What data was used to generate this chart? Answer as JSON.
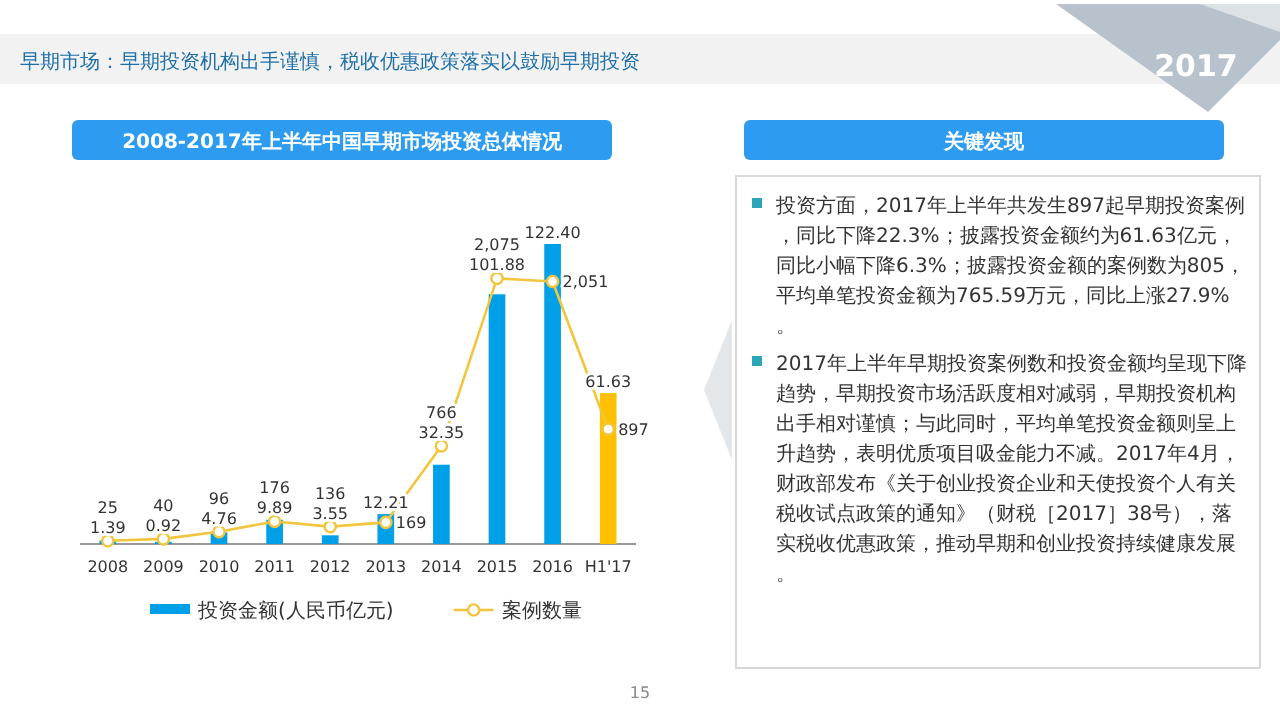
{
  "chart_data": [
    {
      "type": "bar",
      "title": "2008-2017年上半年中国早期市场投资总体情况",
      "categories": [
        "2008",
        "2009",
        "2010",
        "2011",
        "2012",
        "2013",
        "2014",
        "2015",
        "2016",
        "H1'17"
      ],
      "series": [
        {
          "name": "投资金额(人民币亿元)",
          "type": "bar",
          "color": "#00a0e9",
          "colors": [
            "#00a0e9",
            "#00a0e9",
            "#00a0e9",
            "#00a0e9",
            "#00a0e9",
            "#00a0e9",
            "#00a0e9",
            "#00a0e9",
            "#00a0e9",
            "#ffc000"
          ],
          "values": [
            1.39,
            0.92,
            4.76,
            9.89,
            3.55,
            12.21,
            32.35,
            101.88,
            122.4,
            61.63
          ],
          "value_labels": [
            "1.39",
            "0.92",
            "4.76",
            "9.89",
            "3.55",
            "12.21",
            "32.35",
            "101.88",
            "122.40",
            "61.63"
          ]
        },
        {
          "name": "案例数量",
          "type": "line",
          "axis": "y2",
          "color": "#f2c53d",
          "values": [
            25,
            40,
            96,
            176,
            136,
            169,
            766,
            2075,
            2051,
            897
          ],
          "value_labels": [
            "25",
            "40",
            "96",
            "176",
            "136",
            "169",
            "766",
            "2,075",
            "2,051",
            "897"
          ]
        }
      ],
      "tick_labels": "x",
      "marker": "circle",
      "legend": "bottom",
      "data_labels": true,
      "annotations": [
        "早期市场：早期投资机构出手谨慎，税收优惠政策落实以鼓励早期投资",
        "2017",
        "15"
      ]
    },
    {
      "type": "other",
      "title": "关键发现",
      "annotations": [
        "投资方面，2017年上半年共发生897起早期投资案例，同比下降22.3%；披露投资金额约为61.63亿元，同比小幅下降6.3%；披露投资金额的案例数为805，平均单笔投资金额为765.59万元，同比上涨27.9%。",
        "2017年上半年早期投资案例数和投资金额均呈现下降趋势，早期投资市场活跃度相对减弱，早期投资机构出手相对谨慎；与此同时，平均单笔投资金额则呈上升趋势，表明优质项目吸金能力不减。2017年4月，财政部发布《关于创业投资企业和天使投资个人有关税收试点政策的通知》（财税［2017］38号），落实税收优惠政策，推动早期和创业投资持续健康发展。"
      ]
    }
  ]
}
